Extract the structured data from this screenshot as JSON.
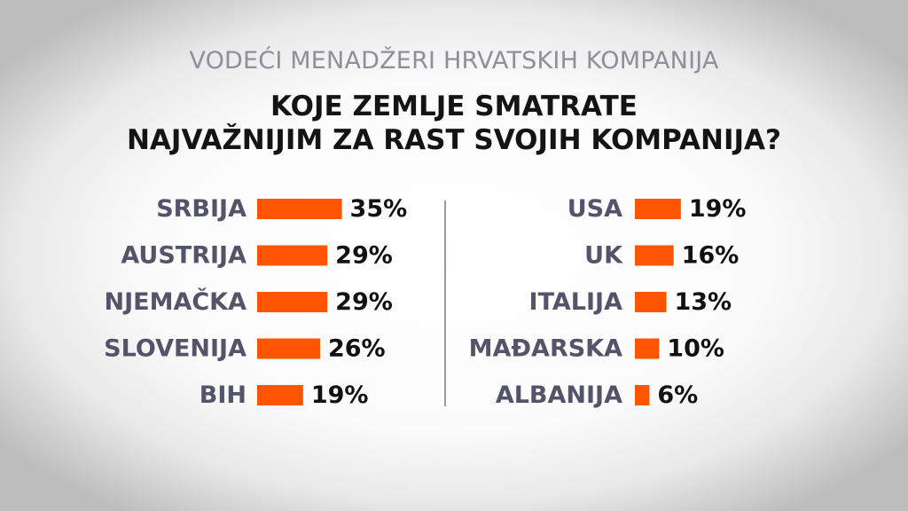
{
  "header": {
    "subtitle": "VODEĆI MENADŽERI HRVATSKIH KOMPANIJA",
    "title_line1": "KOJE ZEMLJE SMATRATE",
    "title_line2": "NAJVAŽNIJIM ZA RAST SVOJIH KOMPANIJA?"
  },
  "colors": {
    "bar": "#ff5500",
    "label": "#53546a",
    "value": "#111111",
    "divider": "#9a9aa4"
  },
  "chart_data": {
    "type": "bar",
    "orientation": "horizontal",
    "title": "KOJE ZEMLJE SMATRATE NAJVAŽNIJIM ZA RAST SVOJIH KOMPANIJA?",
    "subtitle": "VODEĆI MENADŽERI HRVATSKIH KOMPANIJA",
    "unit": "%",
    "columns": [
      {
        "categories": [
          "SRBIJA",
          "AUSTRIJA",
          "NJEMAČKA",
          "SLOVENIJA",
          "BIH"
        ],
        "values": [
          35,
          29,
          29,
          26,
          19
        ],
        "labels": [
          "35%",
          "29%",
          "29%",
          "26%",
          "19%"
        ]
      },
      {
        "categories": [
          "USA",
          "UK",
          "ITALIJA",
          "MAĐARSKA",
          "ALBANIJA"
        ],
        "values": [
          19,
          16,
          13,
          10,
          6
        ],
        "labels": [
          "19%",
          "16%",
          "13%",
          "10%",
          "6%"
        ]
      }
    ],
    "grid": false,
    "legend": "none"
  }
}
